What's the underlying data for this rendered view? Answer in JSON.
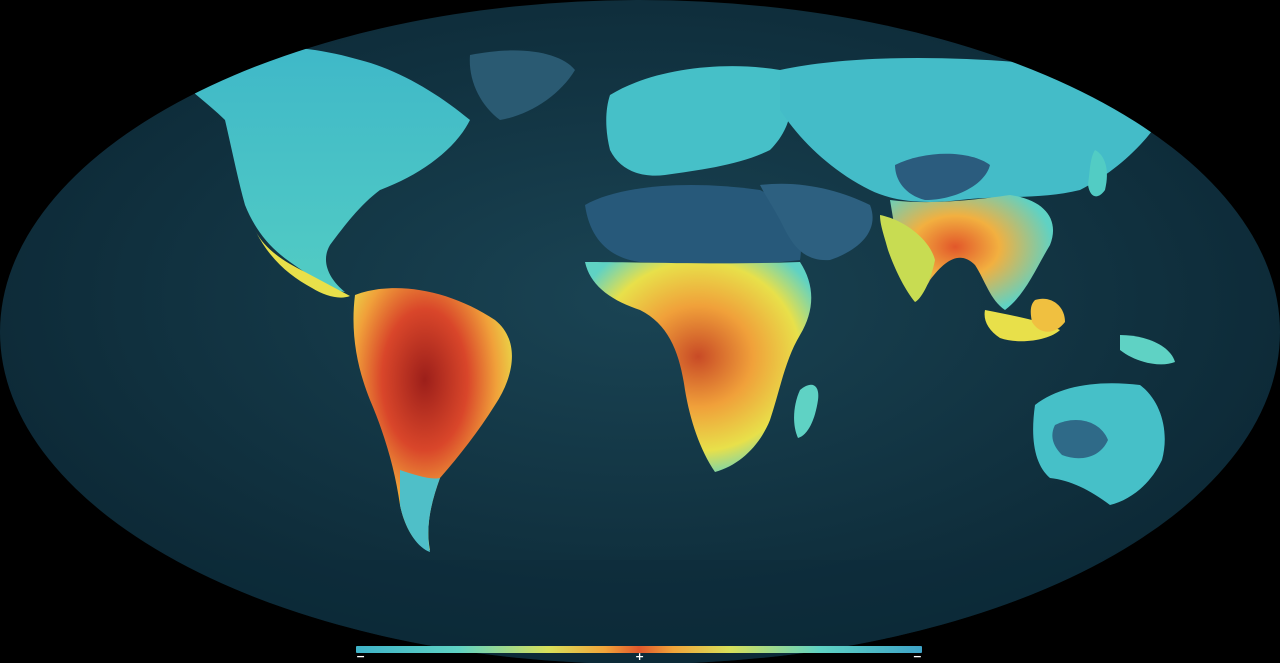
{
  "map": {
    "colors": {
      "ocean_dark": "#0a2a38",
      "ocean_mid": "#163c4c",
      "land_low": "#3fc0cc",
      "land_mid": "#e8e04a",
      "land_high": "#e2572a",
      "land_peak": "#9c1f1a",
      "desert": "#2a5f7a"
    }
  },
  "legend": {
    "min_label": "−",
    "mid_label": "+",
    "max_label": "−"
  }
}
